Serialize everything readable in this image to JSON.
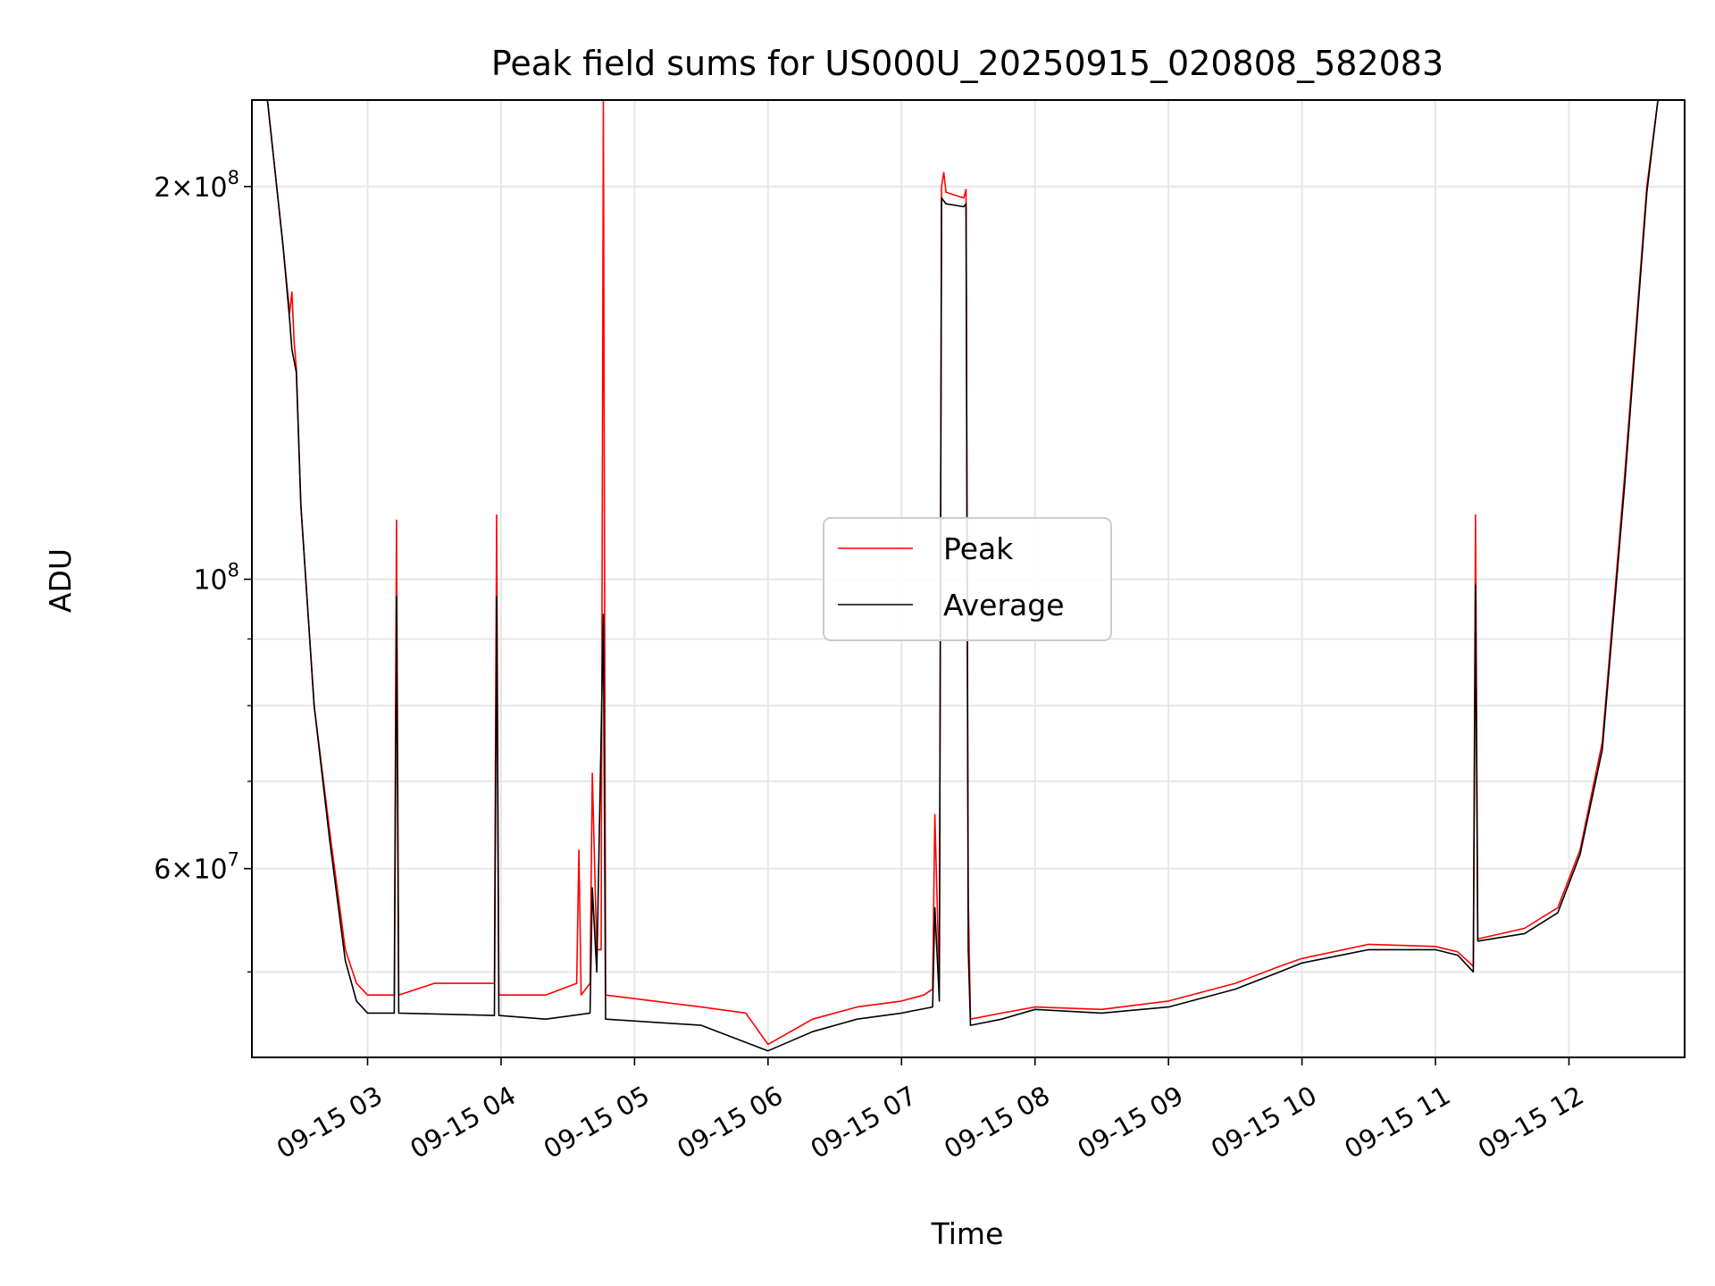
{
  "chart_data": {
    "type": "line",
    "title": "Peak field sums for US000U_20250915_020808_582083",
    "xlabel": "Time",
    "ylabel": "ADU",
    "y_scale": "log",
    "ylim": [
      43000000,
      233000000
    ],
    "xlim": [
      "2025-09-15 02:08",
      "2025-09-15 12:52"
    ],
    "grid": true,
    "legend_position": "center",
    "x_ticks": [
      {
        "t": "2025-09-15 03:00",
        "label": "09-15 03"
      },
      {
        "t": "2025-09-15 04:00",
        "label": "09-15 04"
      },
      {
        "t": "2025-09-15 05:00",
        "label": "09-15 05"
      },
      {
        "t": "2025-09-15 06:00",
        "label": "09-15 06"
      },
      {
        "t": "2025-09-15 07:00",
        "label": "09-15 07"
      },
      {
        "t": "2025-09-15 08:00",
        "label": "09-15 08"
      },
      {
        "t": "2025-09-15 09:00",
        "label": "09-15 09"
      },
      {
        "t": "2025-09-15 10:00",
        "label": "09-15 10"
      },
      {
        "t": "2025-09-15 11:00",
        "label": "09-15 11"
      },
      {
        "t": "2025-09-15 12:00",
        "label": "09-15 12"
      }
    ],
    "y_ticks": [
      {
        "value": 60000000,
        "mantissa": "6",
        "base": "10",
        "exp": "7"
      },
      {
        "value": 100000000,
        "mantissa": "",
        "base": "10",
        "exp": "8"
      },
      {
        "value": 200000000,
        "mantissa": "2",
        "base": "10",
        "exp": "8"
      }
    ],
    "y_minor_ticks": [
      50000000,
      70000000,
      80000000,
      90000000
    ],
    "series": [
      {
        "name": "Peak",
        "color": "#ff0000",
        "points": [
          [
            "2025-09-15 02:08",
            233000000
          ],
          [
            "2025-09-15 02:15",
            233000000
          ],
          [
            "2025-09-15 02:22",
            180000000
          ],
          [
            "2025-09-15 02:25",
            160000000
          ],
          [
            "2025-09-15 02:26",
            166000000
          ],
          [
            "2025-09-15 02:27",
            152000000
          ],
          [
            "2025-09-15 02:28",
            145000000
          ],
          [
            "2025-09-15 02:30",
            114000000
          ],
          [
            "2025-09-15 02:36",
            80000000
          ],
          [
            "2025-09-15 02:43",
            64000000
          ],
          [
            "2025-09-15 02:50",
            52000000
          ],
          [
            "2025-09-15 02:55",
            49000000
          ],
          [
            "2025-09-15 03:00",
            48000000
          ],
          [
            "2025-09-15 03:12",
            48000000
          ],
          [
            "2025-09-15 03:13",
            111000000
          ],
          [
            "2025-09-15 03:14",
            48000000
          ],
          [
            "2025-09-15 03:30",
            49000000
          ],
          [
            "2025-09-15 03:57",
            49000000
          ],
          [
            "2025-09-15 03:58",
            112000000
          ],
          [
            "2025-09-15 03:59",
            48000000
          ],
          [
            "2025-09-15 04:20",
            48000000
          ],
          [
            "2025-09-15 04:34",
            49000000
          ],
          [
            "2025-09-15 04:35",
            62000000
          ],
          [
            "2025-09-15 04:36",
            48000000
          ],
          [
            "2025-09-15 04:40",
            49000000
          ],
          [
            "2025-09-15 04:41",
            71000000
          ],
          [
            "2025-09-15 04:43",
            52000000
          ],
          [
            "2025-09-15 04:45",
            52000000
          ],
          [
            "2025-09-15 04:46",
            233000000
          ],
          [
            "2025-09-15 04:47",
            48000000
          ],
          [
            "2025-09-15 05:30",
            47000000
          ],
          [
            "2025-09-15 05:50",
            46500000
          ],
          [
            "2025-09-15 06:00",
            44000000
          ],
          [
            "2025-09-15 06:20",
            46000000
          ],
          [
            "2025-09-15 06:40",
            47000000
          ],
          [
            "2025-09-15 07:00",
            47500000
          ],
          [
            "2025-09-15 07:10",
            48000000
          ],
          [
            "2025-09-15 07:14",
            48500000
          ],
          [
            "2025-09-15 07:15",
            66000000
          ],
          [
            "2025-09-15 07:17",
            49000000
          ],
          [
            "2025-09-15 07:18",
            200000000
          ],
          [
            "2025-09-15 07:19",
            205000000
          ],
          [
            "2025-09-15 07:20",
            198000000
          ],
          [
            "2025-09-15 07:28",
            196000000
          ],
          [
            "2025-09-15 07:29",
            199000000
          ],
          [
            "2025-09-15 07:30",
            57000000
          ],
          [
            "2025-09-15 07:31",
            46000000
          ],
          [
            "2025-09-15 07:45",
            46500000
          ],
          [
            "2025-09-15 08:00",
            47000000
          ],
          [
            "2025-09-15 08:30",
            46800000
          ],
          [
            "2025-09-15 09:00",
            47500000
          ],
          [
            "2025-09-15 09:30",
            49000000
          ],
          [
            "2025-09-15 09:50",
            50500000
          ],
          [
            "2025-09-15 10:00",
            51200000
          ],
          [
            "2025-09-15 10:30",
            52500000
          ],
          [
            "2025-09-15 11:00",
            52300000
          ],
          [
            "2025-09-15 11:10",
            51800000
          ],
          [
            "2025-09-15 11:17",
            50500000
          ],
          [
            "2025-09-15 11:18",
            112000000
          ],
          [
            "2025-09-15 11:19",
            53000000
          ],
          [
            "2025-09-15 11:40",
            54000000
          ],
          [
            "2025-09-15 11:55",
            56000000
          ],
          [
            "2025-09-15 12:05",
            62000000
          ],
          [
            "2025-09-15 12:15",
            75000000
          ],
          [
            "2025-09-15 12:25",
            120000000
          ],
          [
            "2025-09-15 12:35",
            200000000
          ],
          [
            "2025-09-15 12:40",
            233000000
          ],
          [
            "2025-09-15 12:52",
            233000000
          ]
        ]
      },
      {
        "name": "Average",
        "color": "#000000",
        "points": [
          [
            "2025-09-15 02:08",
            233000000
          ],
          [
            "2025-09-15 02:15",
            233000000
          ],
          [
            "2025-09-15 02:22",
            180000000
          ],
          [
            "2025-09-15 02:25",
            158000000
          ],
          [
            "2025-09-15 02:26",
            150000000
          ],
          [
            "2025-09-15 02:28",
            144000000
          ],
          [
            "2025-09-15 02:30",
            114000000
          ],
          [
            "2025-09-15 02:36",
            80000000
          ],
          [
            "2025-09-15 02:43",
            63000000
          ],
          [
            "2025-09-15 02:50",
            51000000
          ],
          [
            "2025-09-15 02:55",
            47500000
          ],
          [
            "2025-09-15 03:00",
            46500000
          ],
          [
            "2025-09-15 03:12",
            46500000
          ],
          [
            "2025-09-15 03:13",
            97000000
          ],
          [
            "2025-09-15 03:14",
            46500000
          ],
          [
            "2025-09-15 03:57",
            46300000
          ],
          [
            "2025-09-15 03:58",
            97000000
          ],
          [
            "2025-09-15 03:59",
            46300000
          ],
          [
            "2025-09-15 04:20",
            46000000
          ],
          [
            "2025-09-15 04:40",
            46500000
          ],
          [
            "2025-09-15 04:41",
            58000000
          ],
          [
            "2025-09-15 04:43",
            50000000
          ],
          [
            "2025-09-15 04:46",
            94000000
          ],
          [
            "2025-09-15 04:47",
            46000000
          ],
          [
            "2025-09-15 05:30",
            45500000
          ],
          [
            "2025-09-15 06:00",
            43500000
          ],
          [
            "2025-09-15 06:20",
            45000000
          ],
          [
            "2025-09-15 06:40",
            46000000
          ],
          [
            "2025-09-15 07:00",
            46500000
          ],
          [
            "2025-09-15 07:14",
            47000000
          ],
          [
            "2025-09-15 07:15",
            56000000
          ],
          [
            "2025-09-15 07:17",
            47500000
          ],
          [
            "2025-09-15 07:18",
            196000000
          ],
          [
            "2025-09-15 07:20",
            194000000
          ],
          [
            "2025-09-15 07:28",
            193000000
          ],
          [
            "2025-09-15 07:29",
            194000000
          ],
          [
            "2025-09-15 07:30",
            52000000
          ],
          [
            "2025-09-15 07:31",
            45500000
          ],
          [
            "2025-09-15 07:45",
            46000000
          ],
          [
            "2025-09-15 08:00",
            46800000
          ],
          [
            "2025-09-15 08:30",
            46500000
          ],
          [
            "2025-09-15 09:00",
            47000000
          ],
          [
            "2025-09-15 09:30",
            48500000
          ],
          [
            "2025-09-15 09:50",
            50000000
          ],
          [
            "2025-09-15 10:00",
            50800000
          ],
          [
            "2025-09-15 10:30",
            52000000
          ],
          [
            "2025-09-15 11:00",
            52000000
          ],
          [
            "2025-09-15 11:10",
            51500000
          ],
          [
            "2025-09-15 11:17",
            50000000
          ],
          [
            "2025-09-15 11:18",
            99000000
          ],
          [
            "2025-09-15 11:19",
            52800000
          ],
          [
            "2025-09-15 11:40",
            53500000
          ],
          [
            "2025-09-15 11:55",
            55500000
          ],
          [
            "2025-09-15 12:05",
            61500000
          ],
          [
            "2025-09-15 12:15",
            74000000
          ],
          [
            "2025-09-15 12:25",
            118000000
          ],
          [
            "2025-09-15 12:35",
            198000000
          ],
          [
            "2025-09-15 12:40",
            233000000
          ],
          [
            "2025-09-15 12:52",
            233000000
          ]
        ]
      }
    ]
  }
}
